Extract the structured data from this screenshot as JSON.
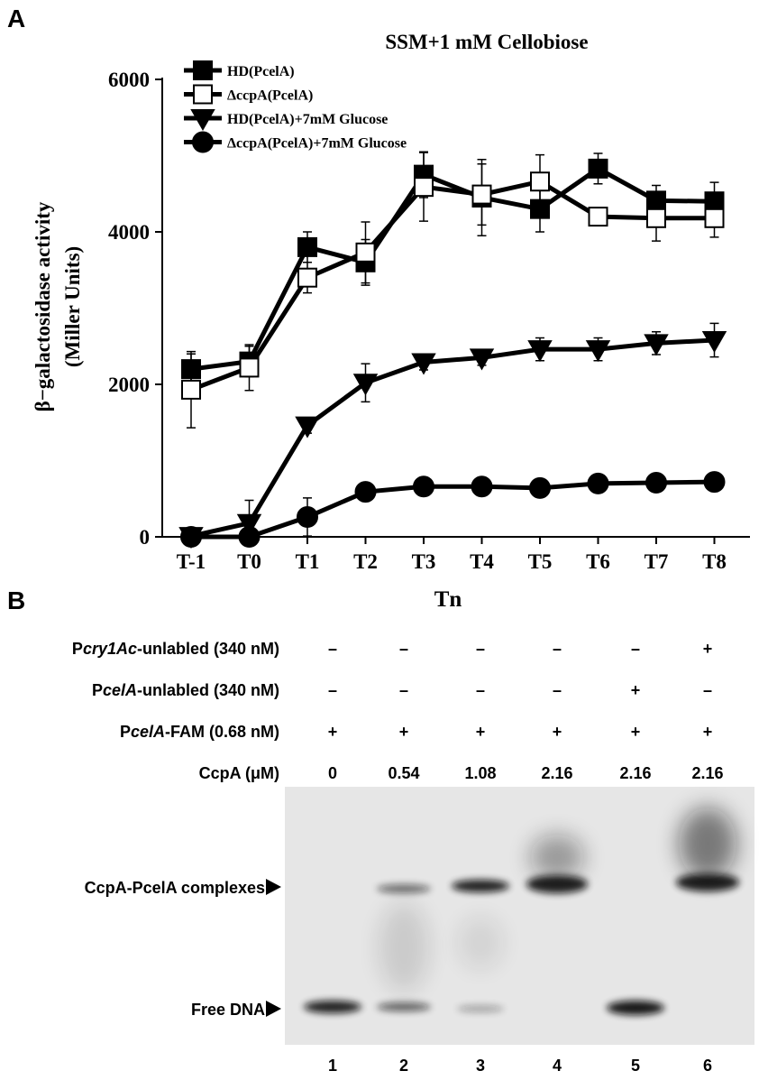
{
  "panel_a_label": "A",
  "chart_data": {
    "type": "line",
    "title": "SSM+1 mM Cellobiose",
    "xlabel": "Tn",
    "ylabel": [
      "β−galactosidase activity",
      "(Miller Units)"
    ],
    "categories": [
      "T-1",
      "T0",
      "T1",
      "T2",
      "T3",
      "T4",
      "T5",
      "T6",
      "T7",
      "T8"
    ],
    "ylim": [
      0,
      6000
    ],
    "yticks": [
      0,
      2000,
      4000,
      6000
    ],
    "legend": "upper left",
    "series": [
      {
        "name": "HD(PcelA)",
        "color": "#000000",
        "marker": "square-filled",
        "values": [
          2200,
          2300,
          3800,
          3600,
          4750,
          4450,
          4300,
          4830,
          4410,
          4400
        ],
        "errors": [
          200,
          200,
          200,
          300,
          300,
          500,
          300,
          200,
          200,
          250
        ]
      },
      {
        "name": "ΔccpA(PcelA)",
        "color": "#000000",
        "marker": "square-open",
        "values": [
          1930,
          2220,
          3400,
          3730,
          4590,
          4490,
          4660,
          4200,
          4180,
          4180
        ],
        "errors": [
          500,
          300,
          200,
          400,
          450,
          400,
          350,
          100,
          300,
          250
        ]
      },
      {
        "name": "HD(PcelA)+7mM Glucose",
        "color": "#000000",
        "marker": "triangle-down",
        "values": [
          10,
          180,
          1460,
          2020,
          2290,
          2350,
          2460,
          2460,
          2540,
          2580
        ],
        "errors": [
          50,
          300,
          100,
          250,
          100,
          100,
          150,
          150,
          150,
          220
        ]
      },
      {
        "name": "ΔccpA(PcelA)+7mM Glucose",
        "color": "#000000",
        "marker": "circle",
        "values": [
          0,
          0,
          260,
          590,
          660,
          660,
          640,
          700,
          710,
          720
        ],
        "errors": [
          50,
          50,
          250,
          50,
          50,
          50,
          50,
          50,
          50,
          50
        ]
      }
    ]
  },
  "panel_b_label": "B",
  "gel": {
    "rows": [
      {
        "label_parts": [
          "P",
          "cry1Ac",
          "-unlabled (340 nM)"
        ],
        "cells": [
          "–",
          "–",
          "–",
          "–",
          "–",
          "+"
        ]
      },
      {
        "label_parts": [
          "P",
          "celA",
          "-unlabled (340 nM)"
        ],
        "cells": [
          "–",
          "–",
          "–",
          "–",
          "+",
          "–"
        ]
      },
      {
        "label_parts": [
          "P",
          "celA",
          "-FAM (0.68 nM)"
        ],
        "cells": [
          "+",
          "+",
          "+",
          "+",
          "+",
          "+"
        ]
      },
      {
        "label_parts": [
          "CcpA (μM)"
        ],
        "cells": [
          0,
          0.54,
          1.08,
          2.16,
          2.16,
          2.16
        ]
      }
    ],
    "band_labels": [
      "CcpA-PcelA complexes",
      "Free DNA"
    ],
    "lanes": [
      1,
      2,
      3,
      4,
      5,
      6
    ]
  }
}
